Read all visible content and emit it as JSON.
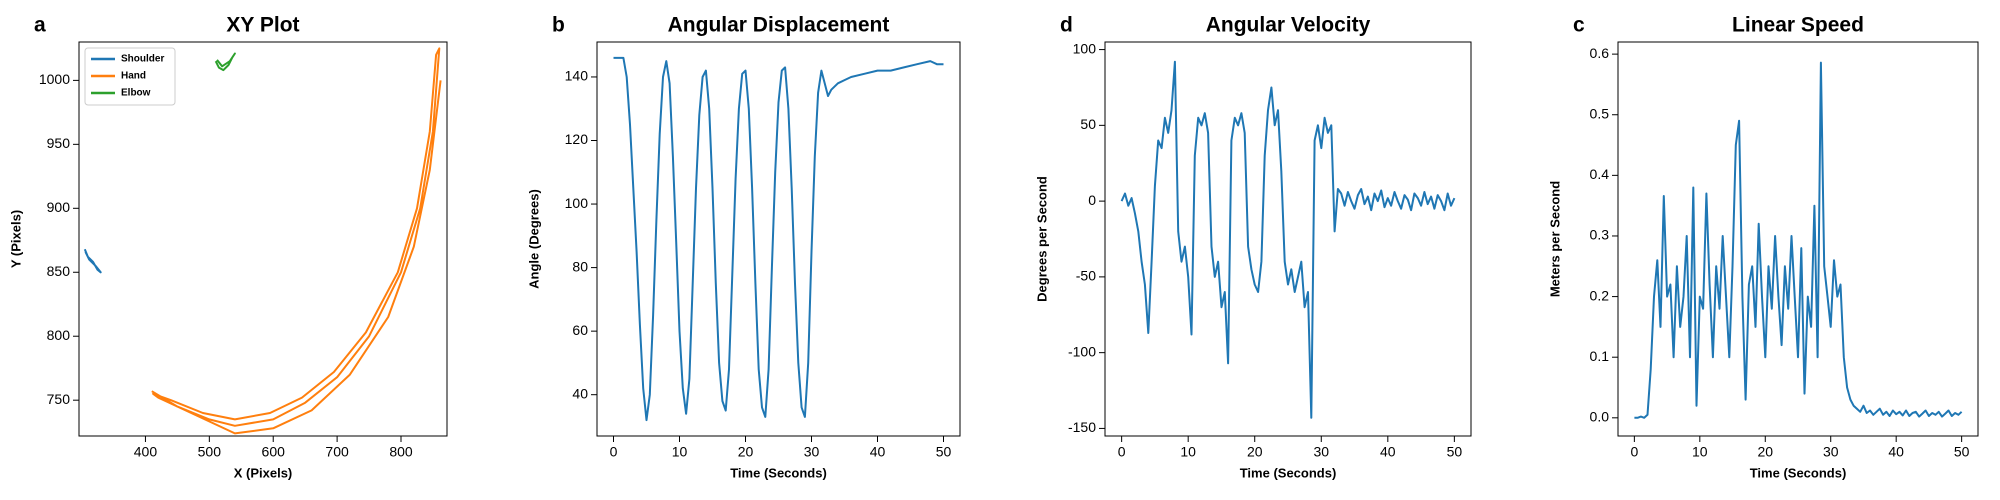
{
  "chart_data": [
    {
      "type": "line",
      "label": "a",
      "title": "XY Plot",
      "xlabel": "X (Pixels)",
      "ylabel": "Y (Pixels)",
      "xlim": [
        296,
        872
      ],
      "ylim": [
        722,
        1030
      ],
      "xticks": [
        400,
        500,
        600,
        700,
        800
      ],
      "yticks": [
        750,
        800,
        850,
        900,
        950,
        1000
      ],
      "legend": "upper left",
      "series": [
        {
          "name": "Shoulder",
          "color": "#1f77b4",
          "x": [
            305,
            310,
            318,
            325,
            330,
            322,
            312,
            306
          ],
          "values": [
            868,
            862,
            858,
            852,
            850,
            855,
            860,
            866
          ]
        },
        {
          "name": "Hand",
          "color": "#ff7f0e",
          "x": [
            410,
            450,
            500,
            540,
            600,
            650,
            700,
            750,
            800,
            830,
            850,
            860,
            855,
            845,
            825,
            795,
            745,
            695,
            645,
            595,
            540,
            490,
            440,
            412,
            420,
            480,
            540,
            600,
            660,
            720,
            780,
            820,
            845,
            862
          ],
          "values": [
            757,
            745,
            735,
            730,
            735,
            748,
            768,
            800,
            850,
            900,
            960,
            1025,
            1020,
            960,
            900,
            850,
            803,
            772,
            752,
            740,
            735,
            740,
            750,
            755,
            752,
            738,
            724,
            728,
            742,
            770,
            815,
            870,
            930,
            1000
          ]
        },
        {
          "name": "Elbow",
          "color": "#2ca02c",
          "x": [
            510,
            515,
            522,
            530,
            536,
            540,
            532,
            520,
            512
          ],
          "values": [
            1015,
            1010,
            1008,
            1012,
            1018,
            1021,
            1015,
            1011,
            1016
          ]
        }
      ]
    },
    {
      "type": "line",
      "label": "b",
      "title": "Angular Displacement",
      "xlabel": "Time (Seconds)",
      "ylabel": "Angle (Degrees)",
      "xlim": [
        -2.5,
        52.5
      ],
      "ylim": [
        27,
        151
      ],
      "xticks": [
        0,
        10,
        20,
        30,
        40,
        50
      ],
      "yticks": [
        40,
        60,
        80,
        100,
        120,
        140
      ],
      "color": "#1f77b4",
      "x": [
        0,
        1,
        1.5,
        2,
        2.5,
        3,
        3.5,
        4,
        4.5,
        5,
        5.5,
        6,
        6.5,
        7,
        7.5,
        8,
        8.5,
        9,
        9.5,
        10,
        10.5,
        11,
        11.5,
        12,
        12.5,
        13,
        13.5,
        14,
        14.5,
        15,
        15.5,
        16,
        16.5,
        17,
        17.5,
        18,
        18.5,
        19,
        19.5,
        20,
        20.5,
        21,
        21.5,
        22,
        22.5,
        23,
        23.5,
        24,
        24.5,
        25,
        25.5,
        26,
        26.5,
        27,
        27.5,
        28,
        28.5,
        29,
        29.5,
        30,
        30.5,
        31,
        31.5,
        32,
        32.5,
        33,
        34,
        35,
        36,
        38,
        40,
        42,
        44,
        46,
        48,
        49,
        50
      ],
      "values": [
        146,
        146,
        146,
        140,
        125,
        105,
        85,
        62,
        42,
        32,
        40,
        65,
        95,
        122,
        140,
        145,
        138,
        115,
        88,
        60,
        42,
        34,
        45,
        75,
        105,
        128,
        140,
        142,
        130,
        105,
        75,
        50,
        38,
        35,
        48,
        78,
        108,
        130,
        141,
        142,
        130,
        105,
        75,
        48,
        36,
        33,
        48,
        80,
        110,
        132,
        142,
        143,
        130,
        105,
        75,
        50,
        36,
        33,
        50,
        85,
        115,
        135,
        142,
        138,
        134,
        136,
        138,
        139,
        140,
        141,
        142,
        142,
        143,
        144,
        145,
        144,
        144
      ]
    },
    {
      "type": "line",
      "label": "d",
      "title": "Angular Velocity",
      "xlabel": "Time (Seconds)",
      "ylabel": "Degrees per Second",
      "xlim": [
        -2.5,
        52.5
      ],
      "ylim": [
        -155,
        105
      ],
      "xticks": [
        0,
        10,
        20,
        30,
        40,
        50
      ],
      "yticks": [
        -150,
        -100,
        -50,
        0,
        50,
        100
      ],
      "color": "#1f77b4",
      "x": [
        0,
        0.5,
        1,
        1.5,
        2,
        2.5,
        3,
        3.5,
        4,
        4.5,
        5,
        5.5,
        6,
        6.5,
        7,
        7.5,
        8,
        8.5,
        9,
        9.5,
        10,
        10.5,
        11,
        11.5,
        12,
        12.5,
        13,
        13.5,
        14,
        14.5,
        15,
        15.5,
        16,
        16.5,
        17,
        17.5,
        18,
        18.5,
        19,
        19.5,
        20,
        20.5,
        21,
        21.5,
        22,
        22.5,
        23,
        23.5,
        24,
        24.5,
        25,
        25.5,
        26,
        26.5,
        27,
        27.5,
        28,
        28.5,
        29,
        29.5,
        30,
        30.5,
        31,
        31.5,
        32,
        32.5,
        33,
        33.5,
        34,
        34.5,
        35,
        35.5,
        36,
        36.5,
        37,
        37.5,
        38,
        38.5,
        39,
        39.5,
        40,
        40.5,
        41,
        41.5,
        42,
        42.5,
        43,
        43.5,
        44,
        44.5,
        45,
        45.5,
        46,
        46.5,
        47,
        47.5,
        48,
        48.5,
        49,
        49.5,
        50
      ],
      "values": [
        0,
        5,
        -3,
        2,
        -8,
        -20,
        -40,
        -55,
        -87,
        -40,
        10,
        40,
        35,
        55,
        45,
        60,
        92,
        -20,
        -40,
        -30,
        -50,
        -88,
        30,
        55,
        50,
        58,
        45,
        -30,
        -50,
        -40,
        -70,
        -60,
        -107,
        40,
        55,
        50,
        58,
        45,
        -30,
        -45,
        -55,
        -60,
        -40,
        30,
        60,
        75,
        50,
        60,
        20,
        -40,
        -55,
        -45,
        -60,
        -50,
        -40,
        -70,
        -60,
        -143,
        40,
        50,
        35,
        55,
        45,
        50,
        -20,
        8,
        5,
        -3,
        6,
        0,
        -5,
        4,
        8,
        -2,
        3,
        -6,
        5,
        0,
        7,
        -4,
        2,
        -3,
        6,
        0,
        -5,
        4,
        1,
        -6,
        5,
        2,
        -3,
        6,
        -2,
        3,
        -5,
        4,
        0,
        -6,
        5,
        -3,
        2
      ]
    },
    {
      "type": "line",
      "label": "c",
      "title": "Linear Speed",
      "xlabel": "Time (Seconds)",
      "ylabel": "Meters per Second",
      "xlim": [
        -2.5,
        52.5
      ],
      "ylim": [
        -0.03,
        0.62
      ],
      "xticks": [
        0,
        10,
        20,
        30,
        40,
        50
      ],
      "yticks": [
        {
          "value": 0,
          "label": "0.0"
        },
        0.1,
        0.2,
        0.3,
        0.4,
        0.5,
        0.6
      ],
      "color": "#1f77b4",
      "x": [
        0,
        0.5,
        1,
        1.5,
        2,
        2.5,
        3,
        3.5,
        4,
        4.5,
        5,
        5.5,
        6,
        6.5,
        7,
        7.5,
        8,
        8.5,
        9,
        9.5,
        10,
        10.5,
        11,
        11.5,
        12,
        12.5,
        13,
        13.5,
        14,
        14.5,
        15,
        15.5,
        16,
        16.5,
        17,
        17.5,
        18,
        18.5,
        19,
        19.5,
        20,
        20.5,
        21,
        21.5,
        22,
        22.5,
        23,
        23.5,
        24,
        24.5,
        25,
        25.5,
        26,
        26.5,
        27,
        27.5,
        28,
        28.5,
        29,
        29.5,
        30,
        30.5,
        31,
        31.5,
        32,
        32.5,
        33,
        33.5,
        34,
        34.5,
        35,
        35.5,
        36,
        36.5,
        37,
        37.5,
        38,
        38.5,
        39,
        39.5,
        40,
        40.5,
        41,
        41.5,
        42,
        42.5,
        43,
        43.5,
        44,
        44.5,
        45,
        45.5,
        46,
        46.5,
        47,
        47.5,
        48,
        48.5,
        49,
        49.5,
        50
      ],
      "values": [
        0,
        0,
        0.002,
        0,
        0.005,
        0.08,
        0.2,
        0.26,
        0.15,
        0.366,
        0.2,
        0.22,
        0.1,
        0.25,
        0.15,
        0.2,
        0.3,
        0.1,
        0.38,
        0.02,
        0.2,
        0.18,
        0.37,
        0.22,
        0.1,
        0.25,
        0.18,
        0.3,
        0.2,
        0.1,
        0.25,
        0.45,
        0.49,
        0.2,
        0.03,
        0.22,
        0.25,
        0.15,
        0.32,
        0.2,
        0.1,
        0.25,
        0.18,
        0.3,
        0.2,
        0.12,
        0.25,
        0.18,
        0.3,
        0.2,
        0.1,
        0.28,
        0.04,
        0.2,
        0.15,
        0.35,
        0.1,
        0.586,
        0.25,
        0.2,
        0.15,
        0.26,
        0.2,
        0.22,
        0.1,
        0.05,
        0.03,
        0.02,
        0.015,
        0.01,
        0.02,
        0.008,
        0.012,
        0.005,
        0.01,
        0.015,
        0.005,
        0.01,
        0.003,
        0.012,
        0.006,
        0.01,
        0.004,
        0.012,
        0.003,
        0.008,
        0.01,
        0.002,
        0.007,
        0.012,
        0.003,
        0.008,
        0.005,
        0.01,
        0.002,
        0.007,
        0.012,
        0.003,
        0.008,
        0.005,
        0.01
      ]
    }
  ]
}
